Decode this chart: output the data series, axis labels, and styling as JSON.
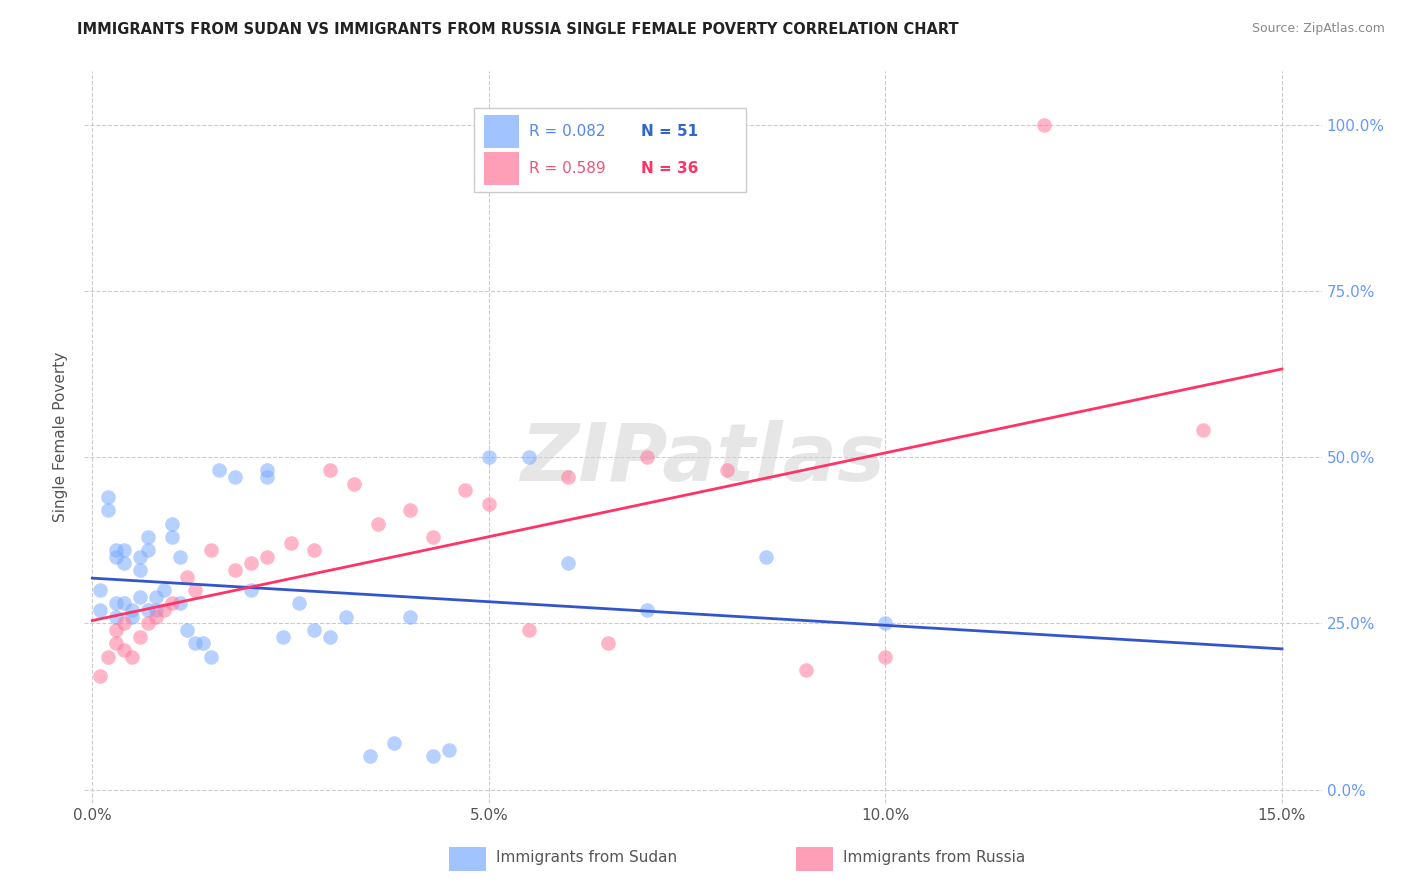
{
  "title": "IMMIGRANTS FROM SUDAN VS IMMIGRANTS FROM RUSSIA SINGLE FEMALE POVERTY CORRELATION CHART",
  "source": "Source: ZipAtlas.com",
  "xlabel_ticks": [
    "0.0%",
    "5.0%",
    "10.0%",
    "15.0%"
  ],
  "xlabel_tick_vals": [
    0.0,
    0.05,
    0.1,
    0.15
  ],
  "ylabel_ticks": [
    "0.0%",
    "25.0%",
    "50.0%",
    "75.0%",
    "100.0%"
  ],
  "ylabel_tick_vals": [
    0.0,
    0.25,
    0.5,
    0.75,
    1.0
  ],
  "ylabel_label": "Single Female Poverty",
  "xlim": [
    -0.001,
    0.155
  ],
  "ylim": [
    -0.02,
    1.08
  ],
  "sudan_color": "#7aaaff",
  "russia_color": "#ff7799",
  "sudan_line_color": "#3355cc",
  "russia_line_color": "#ff3366",
  "sudan_R": 0.082,
  "sudan_N": 51,
  "russia_R": 0.589,
  "russia_N": 36,
  "legend_label_sudan": "Immigrants from Sudan",
  "legend_label_russia": "Immigrants from Russia",
  "watermark": "ZIPatlas",
  "sudan_x": [
    0.001,
    0.001,
    0.002,
    0.002,
    0.003,
    0.003,
    0.003,
    0.003,
    0.004,
    0.004,
    0.004,
    0.005,
    0.005,
    0.006,
    0.006,
    0.006,
    0.007,
    0.007,
    0.007,
    0.008,
    0.008,
    0.009,
    0.01,
    0.01,
    0.011,
    0.011,
    0.012,
    0.013,
    0.014,
    0.015,
    0.016,
    0.018,
    0.02,
    0.022,
    0.022,
    0.024,
    0.026,
    0.028,
    0.03,
    0.032,
    0.035,
    0.038,
    0.04,
    0.043,
    0.045,
    0.05,
    0.055,
    0.06,
    0.07,
    0.085,
    0.1
  ],
  "sudan_y": [
    0.27,
    0.3,
    0.44,
    0.42,
    0.36,
    0.35,
    0.28,
    0.26,
    0.36,
    0.34,
    0.28,
    0.27,
    0.26,
    0.35,
    0.33,
    0.29,
    0.38,
    0.36,
    0.27,
    0.29,
    0.27,
    0.3,
    0.4,
    0.38,
    0.35,
    0.28,
    0.24,
    0.22,
    0.22,
    0.2,
    0.48,
    0.47,
    0.3,
    0.47,
    0.48,
    0.23,
    0.28,
    0.24,
    0.23,
    0.26,
    0.05,
    0.07,
    0.26,
    0.05,
    0.06,
    0.5,
    0.5,
    0.34,
    0.27,
    0.35,
    0.25
  ],
  "russia_x": [
    0.001,
    0.002,
    0.003,
    0.003,
    0.004,
    0.004,
    0.005,
    0.006,
    0.007,
    0.008,
    0.009,
    0.01,
    0.012,
    0.013,
    0.015,
    0.018,
    0.02,
    0.022,
    0.025,
    0.028,
    0.03,
    0.033,
    0.036,
    0.04,
    0.043,
    0.047,
    0.05,
    0.055,
    0.06,
    0.065,
    0.07,
    0.08,
    0.09,
    0.1,
    0.12,
    0.14
  ],
  "russia_y": [
    0.17,
    0.2,
    0.22,
    0.24,
    0.25,
    0.21,
    0.2,
    0.23,
    0.25,
    0.26,
    0.27,
    0.28,
    0.32,
    0.3,
    0.36,
    0.33,
    0.34,
    0.35,
    0.37,
    0.36,
    0.48,
    0.46,
    0.4,
    0.42,
    0.38,
    0.45,
    0.43,
    0.24,
    0.47,
    0.22,
    0.5,
    0.48,
    0.18,
    0.2,
    1.0,
    0.54
  ]
}
